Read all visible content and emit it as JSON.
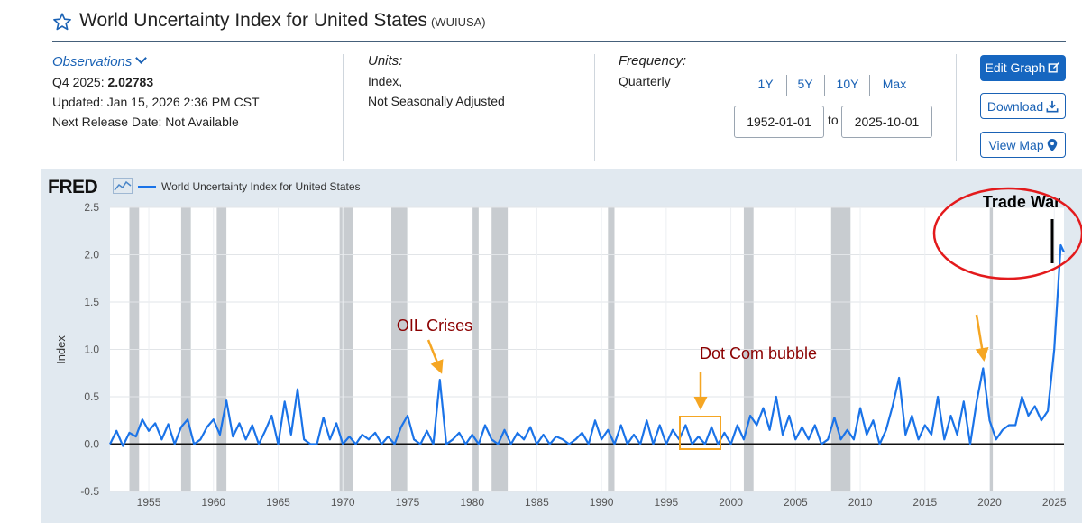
{
  "header": {
    "title": "World Uncertainty Index for United States",
    "series_id": "(WUIUSA)"
  },
  "observations": {
    "link_label": "Observations",
    "latest_label": "Q4 2025:",
    "latest_value": "2.02783",
    "updated": "Updated: Jan 15, 2026 2:36 PM CST",
    "next_release": "Next Release Date: Not Available"
  },
  "units": {
    "label": "Units:",
    "line1": "Index,",
    "line2": "Not Seasonally Adjusted"
  },
  "frequency": {
    "label": "Frequency:",
    "value": "Quarterly"
  },
  "range_buttons": [
    "1Y",
    "5Y",
    "10Y",
    "Max"
  ],
  "date_range": {
    "start": "1952-01-01",
    "to_label": "to",
    "end": "2025-10-01"
  },
  "actions": {
    "edit_graph": "Edit Graph",
    "download": "Download",
    "view_map": "View Map"
  },
  "brand": {
    "logo_text": "FRED",
    "series_color": "#1a73e8",
    "recession_color": "#c8ccd0",
    "annotation_color": "#8b0000",
    "arrow_color": "#f5a623",
    "circle_color": "#e31a1c"
  },
  "chart_data": {
    "type": "line",
    "title": "",
    "legend": [
      "World Uncertainty Index for United States"
    ],
    "ylabel": "Index",
    "xlim": [
      1952,
      2025.75
    ],
    "ylim": [
      -0.5,
      2.5
    ],
    "yticks": [
      -0.5,
      0.0,
      0.5,
      1.0,
      1.5,
      2.0,
      2.5
    ],
    "ytick_labels": [
      "-0.5",
      "0.0",
      "0.5",
      "1.0",
      "1.5",
      "2.0",
      "2.5"
    ],
    "xticks": [
      1955,
      1960,
      1965,
      1970,
      1975,
      1980,
      1985,
      1990,
      1995,
      2000,
      2005,
      2010,
      2015,
      2020,
      2025
    ],
    "xtick_labels": [
      "1955",
      "1960",
      "1965",
      "1970",
      "1975",
      "1980",
      "1985",
      "1990",
      "1995",
      "2000",
      "2005",
      "2010",
      "2015",
      "2020",
      "2025"
    ],
    "recessions": [
      [
        1953.5,
        1954.25
      ],
      [
        1957.5,
        1958.25
      ],
      [
        1960.25,
        1961.0
      ],
      [
        1969.75,
        1970.75
      ],
      [
        1973.75,
        1975.0
      ],
      [
        1980.0,
        1980.5
      ],
      [
        1981.5,
        1982.75
      ],
      [
        1990.5,
        1991.0
      ],
      [
        2001.0,
        2001.75
      ],
      [
        2007.75,
        2009.25
      ],
      [
        2020.0,
        2020.25
      ]
    ],
    "series": [
      {
        "name": "World Uncertainty Index for United States",
        "points": [
          [
            1952.0,
            0.0
          ],
          [
            1952.5,
            0.14
          ],
          [
            1953.0,
            -0.02
          ],
          [
            1953.5,
            0.12
          ],
          [
            1954.0,
            0.08
          ],
          [
            1954.5,
            0.26
          ],
          [
            1955.0,
            0.14
          ],
          [
            1955.5,
            0.22
          ],
          [
            1956.0,
            0.05
          ],
          [
            1956.5,
            0.21
          ],
          [
            1957.0,
            0.0
          ],
          [
            1957.5,
            0.18
          ],
          [
            1958.0,
            0.26
          ],
          [
            1958.5,
            0.0
          ],
          [
            1959.0,
            0.05
          ],
          [
            1959.5,
            0.18
          ],
          [
            1960.0,
            0.26
          ],
          [
            1960.5,
            0.1
          ],
          [
            1961.0,
            0.46
          ],
          [
            1961.5,
            0.08
          ],
          [
            1962.0,
            0.22
          ],
          [
            1962.5,
            0.05
          ],
          [
            1963.0,
            0.2
          ],
          [
            1963.5,
            0.0
          ],
          [
            1964.0,
            0.14
          ],
          [
            1964.5,
            0.3
          ],
          [
            1965.0,
            0.0
          ],
          [
            1965.5,
            0.45
          ],
          [
            1966.0,
            0.1
          ],
          [
            1966.5,
            0.58
          ],
          [
            1967.0,
            0.05
          ],
          [
            1967.5,
            0.0
          ],
          [
            1968.0,
            0.0
          ],
          [
            1968.5,
            0.28
          ],
          [
            1969.0,
            0.05
          ],
          [
            1969.5,
            0.22
          ],
          [
            1970.0,
            0.0
          ],
          [
            1970.5,
            0.08
          ],
          [
            1971.0,
            0.0
          ],
          [
            1971.5,
            0.1
          ],
          [
            1972.0,
            0.05
          ],
          [
            1972.5,
            0.12
          ],
          [
            1973.0,
            0.0
          ],
          [
            1973.5,
            0.08
          ],
          [
            1974.0,
            0.0
          ],
          [
            1974.5,
            0.18
          ],
          [
            1975.0,
            0.3
          ],
          [
            1975.5,
            0.05
          ],
          [
            1976.0,
            0.0
          ],
          [
            1976.5,
            0.14
          ],
          [
            1977.0,
            0.0
          ],
          [
            1977.5,
            0.68
          ],
          [
            1978.0,
            0.0
          ],
          [
            1978.5,
            0.05
          ],
          [
            1979.0,
            0.12
          ],
          [
            1979.5,
            0.0
          ],
          [
            1980.0,
            0.1
          ],
          [
            1980.5,
            0.0
          ],
          [
            1981.0,
            0.2
          ],
          [
            1981.5,
            0.05
          ],
          [
            1982.0,
            0.0
          ],
          [
            1982.5,
            0.15
          ],
          [
            1983.0,
            0.0
          ],
          [
            1983.5,
            0.12
          ],
          [
            1984.0,
            0.05
          ],
          [
            1984.5,
            0.18
          ],
          [
            1985.0,
            0.0
          ],
          [
            1985.5,
            0.1
          ],
          [
            1986.0,
            0.0
          ],
          [
            1986.5,
            0.08
          ],
          [
            1987.0,
            0.05
          ],
          [
            1987.5,
            0.0
          ],
          [
            1988.0,
            0.05
          ],
          [
            1988.5,
            0.12
          ],
          [
            1989.0,
            0.0
          ],
          [
            1989.5,
            0.25
          ],
          [
            1990.0,
            0.05
          ],
          [
            1990.5,
            0.15
          ],
          [
            1991.0,
            0.0
          ],
          [
            1991.5,
            0.2
          ],
          [
            1992.0,
            0.0
          ],
          [
            1992.5,
            0.1
          ],
          [
            1993.0,
            0.0
          ],
          [
            1993.5,
            0.25
          ],
          [
            1994.0,
            0.0
          ],
          [
            1994.5,
            0.2
          ],
          [
            1995.0,
            0.0
          ],
          [
            1995.5,
            0.15
          ],
          [
            1996.0,
            0.05
          ],
          [
            1996.5,
            0.2
          ],
          [
            1997.0,
            0.0
          ],
          [
            1997.5,
            0.08
          ],
          [
            1998.0,
            0.0
          ],
          [
            1998.5,
            0.18
          ],
          [
            1999.0,
            0.0
          ],
          [
            1999.5,
            0.12
          ],
          [
            2000.0,
            0.0
          ],
          [
            2000.5,
            0.2
          ],
          [
            2001.0,
            0.05
          ],
          [
            2001.5,
            0.3
          ],
          [
            2002.0,
            0.2
          ],
          [
            2002.5,
            0.38
          ],
          [
            2003.0,
            0.15
          ],
          [
            2003.5,
            0.5
          ],
          [
            2004.0,
            0.1
          ],
          [
            2004.5,
            0.3
          ],
          [
            2005.0,
            0.05
          ],
          [
            2005.5,
            0.18
          ],
          [
            2006.0,
            0.05
          ],
          [
            2006.5,
            0.2
          ],
          [
            2007.0,
            0.0
          ],
          [
            2007.5,
            0.05
          ],
          [
            2008.0,
            0.28
          ],
          [
            2008.5,
            0.05
          ],
          [
            2009.0,
            0.15
          ],
          [
            2009.5,
            0.05
          ],
          [
            2010.0,
            0.38
          ],
          [
            2010.5,
            0.1
          ],
          [
            2011.0,
            0.25
          ],
          [
            2011.5,
            0.0
          ],
          [
            2012.0,
            0.15
          ],
          [
            2012.5,
            0.4
          ],
          [
            2013.0,
            0.7
          ],
          [
            2013.5,
            0.1
          ],
          [
            2014.0,
            0.3
          ],
          [
            2014.5,
            0.05
          ],
          [
            2015.0,
            0.2
          ],
          [
            2015.5,
            0.1
          ],
          [
            2016.0,
            0.5
          ],
          [
            2016.5,
            0.05
          ],
          [
            2017.0,
            0.3
          ],
          [
            2017.5,
            0.1
          ],
          [
            2018.0,
            0.45
          ],
          [
            2018.5,
            0.0
          ],
          [
            2019.0,
            0.45
          ],
          [
            2019.5,
            0.8
          ],
          [
            2020.0,
            0.25
          ],
          [
            2020.5,
            0.05
          ],
          [
            2021.0,
            0.15
          ],
          [
            2021.5,
            0.2
          ],
          [
            2022.0,
            0.2
          ],
          [
            2022.5,
            0.5
          ],
          [
            2023.0,
            0.3
          ],
          [
            2023.5,
            0.4
          ],
          [
            2024.0,
            0.25
          ],
          [
            2024.5,
            0.35
          ],
          [
            2025.0,
            1.0
          ],
          [
            2025.5,
            2.1
          ],
          [
            2025.75,
            2.02783
          ]
        ]
      }
    ],
    "annotations": [
      {
        "text": "OIL Crises",
        "x": 1977.5,
        "y": 0.68
      },
      {
        "text": "Dot Com bubble",
        "x": 1997.5,
        "y": 0.1
      },
      {
        "text": "Trade War",
        "x": 2025.5,
        "y": 2.1
      }
    ]
  }
}
